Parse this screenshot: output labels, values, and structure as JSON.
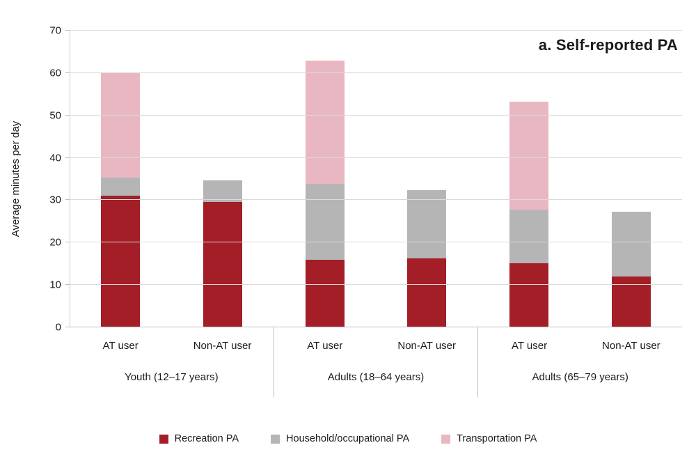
{
  "chart_data": {
    "type": "bar",
    "stacked": true,
    "title": "a. Self-reported PA",
    "ylabel": "Average minutes per day",
    "ylim": [
      0,
      70
    ],
    "ytick_step": 10,
    "grid": true,
    "legend_position": "bottom",
    "groups": [
      "Youth (12–17 years)",
      "Adults (18–64 years)",
      "Adults (65–79 years)"
    ],
    "bar_labels": [
      "AT user",
      "Non-AT user"
    ],
    "series": [
      {
        "name": "Recreation PA",
        "color": "#a31e26",
        "values": [
          31.0,
          29.5,
          16.0,
          16.3,
          15.2,
          12.0
        ]
      },
      {
        "name": "Household/occupational PA",
        "color": "#b5b5b5",
        "values": [
          4.4,
          5.2,
          17.8,
          16.0,
          12.5,
          15.2
        ]
      },
      {
        "name": "Transportation PA",
        "color": "#e9b7c1",
        "values": [
          24.6,
          0,
          29.2,
          0,
          25.6,
          0
        ]
      }
    ],
    "bar_totals": [
      60.0,
      34.7,
      63.0,
      32.3,
      53.3,
      27.2
    ]
  }
}
